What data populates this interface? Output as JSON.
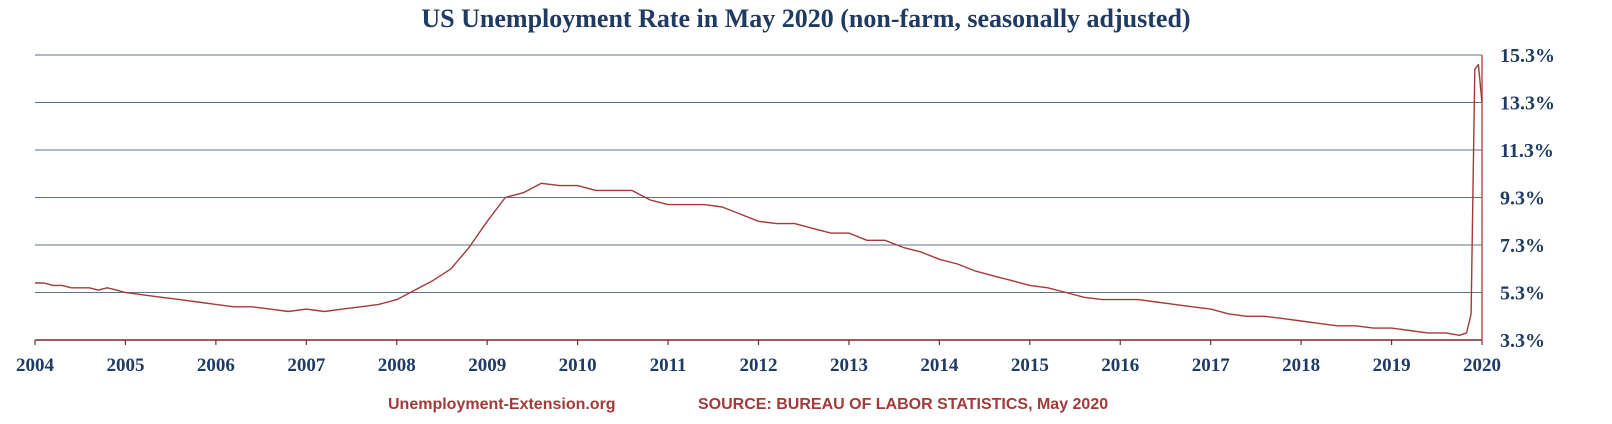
{
  "colors": {
    "title": "#1f3b63",
    "line": "#a33a3a",
    "grid": "#5f7388",
    "footer": "#a33a3a"
  },
  "footer": {
    "site": "Unemployment-Extension.org",
    "source": "SOURCE: BUREAU OF LABOR STATISTICS, May 2020"
  },
  "chart_data": {
    "type": "line",
    "title": "US Unemployment Rate in May 2020 (non-farm, seasonally adjusted)",
    "xlabel": "",
    "ylabel": "",
    "grid": true,
    "y_axis_position": "right",
    "ylim": [
      3.3,
      15.3
    ],
    "yticks": [
      3.3,
      5.3,
      7.3,
      9.3,
      11.3,
      13.3,
      15.3
    ],
    "ytick_labels": [
      "3.3%",
      "5.3%",
      "7.3%",
      "9.3%",
      "11.3%",
      "13.3%",
      "15.3%"
    ],
    "xlim": [
      2004,
      2020
    ],
    "xticks": [
      2004,
      2005,
      2006,
      2007,
      2008,
      2009,
      2010,
      2011,
      2012,
      2013,
      2014,
      2015,
      2016,
      2017,
      2018,
      2019,
      2020
    ],
    "xtick_labels": [
      "2004",
      "2005",
      "2006",
      "2007",
      "2008",
      "2009",
      "2010",
      "2011",
      "2012",
      "2013",
      "2014",
      "2015",
      "2016",
      "2017",
      "2018",
      "2019",
      "2020"
    ],
    "series": [
      {
        "x": [
          2004.0,
          2004.1,
          2004.2,
          2004.3,
          2004.4,
          2004.5,
          2004.6,
          2004.7,
          2004.8,
          2004.9,
          2005.0,
          2005.2,
          2005.4,
          2005.6,
          2005.8,
          2006.0,
          2006.2,
          2006.4,
          2006.6,
          2006.8,
          2007.0,
          2007.2,
          2007.4,
          2007.6,
          2007.8,
          2008.0,
          2008.2,
          2008.4,
          2008.6,
          2008.8,
          2009.0,
          2009.2,
          2009.4,
          2009.6,
          2009.8,
          2010.0,
          2010.2,
          2010.4,
          2010.6,
          2010.8,
          2011.0,
          2011.2,
          2011.4,
          2011.6,
          2011.8,
          2012.0,
          2012.2,
          2012.4,
          2012.6,
          2012.8,
          2013.0,
          2013.2,
          2013.4,
          2013.6,
          2013.8,
          2014.0,
          2014.2,
          2014.4,
          2014.6,
          2014.8,
          2015.0,
          2015.2,
          2015.4,
          2015.6,
          2015.8,
          2016.0,
          2016.2,
          2016.4,
          2016.6,
          2016.8,
          2017.0,
          2017.2,
          2017.4,
          2017.6,
          2017.8,
          2018.0,
          2018.2,
          2018.4,
          2018.6,
          2018.8,
          2019.0,
          2019.2,
          2019.4,
          2019.6,
          2019.75,
          2019.83,
          2019.88,
          2019.92,
          2019.96,
          2020.0
        ],
        "y": [
          5.7,
          5.7,
          5.6,
          5.6,
          5.5,
          5.5,
          5.5,
          5.4,
          5.5,
          5.4,
          5.3,
          5.2,
          5.1,
          5.0,
          4.9,
          4.8,
          4.7,
          4.7,
          4.6,
          4.5,
          4.6,
          4.5,
          4.6,
          4.7,
          4.8,
          5.0,
          5.4,
          5.8,
          6.3,
          7.2,
          8.3,
          9.3,
          9.5,
          9.9,
          9.8,
          9.8,
          9.6,
          9.6,
          9.6,
          9.2,
          9.0,
          9.0,
          9.0,
          8.9,
          8.6,
          8.3,
          8.2,
          8.2,
          8.0,
          7.8,
          7.8,
          7.5,
          7.5,
          7.2,
          7.0,
          6.7,
          6.5,
          6.2,
          6.0,
          5.8,
          5.6,
          5.5,
          5.3,
          5.1,
          5.0,
          5.0,
          5.0,
          4.9,
          4.8,
          4.7,
          4.6,
          4.4,
          4.3,
          4.3,
          4.2,
          4.1,
          4.0,
          3.9,
          3.9,
          3.8,
          3.8,
          3.7,
          3.6,
          3.6,
          3.5,
          3.6,
          4.4,
          14.7,
          14.9,
          13.3
        ]
      }
    ]
  }
}
